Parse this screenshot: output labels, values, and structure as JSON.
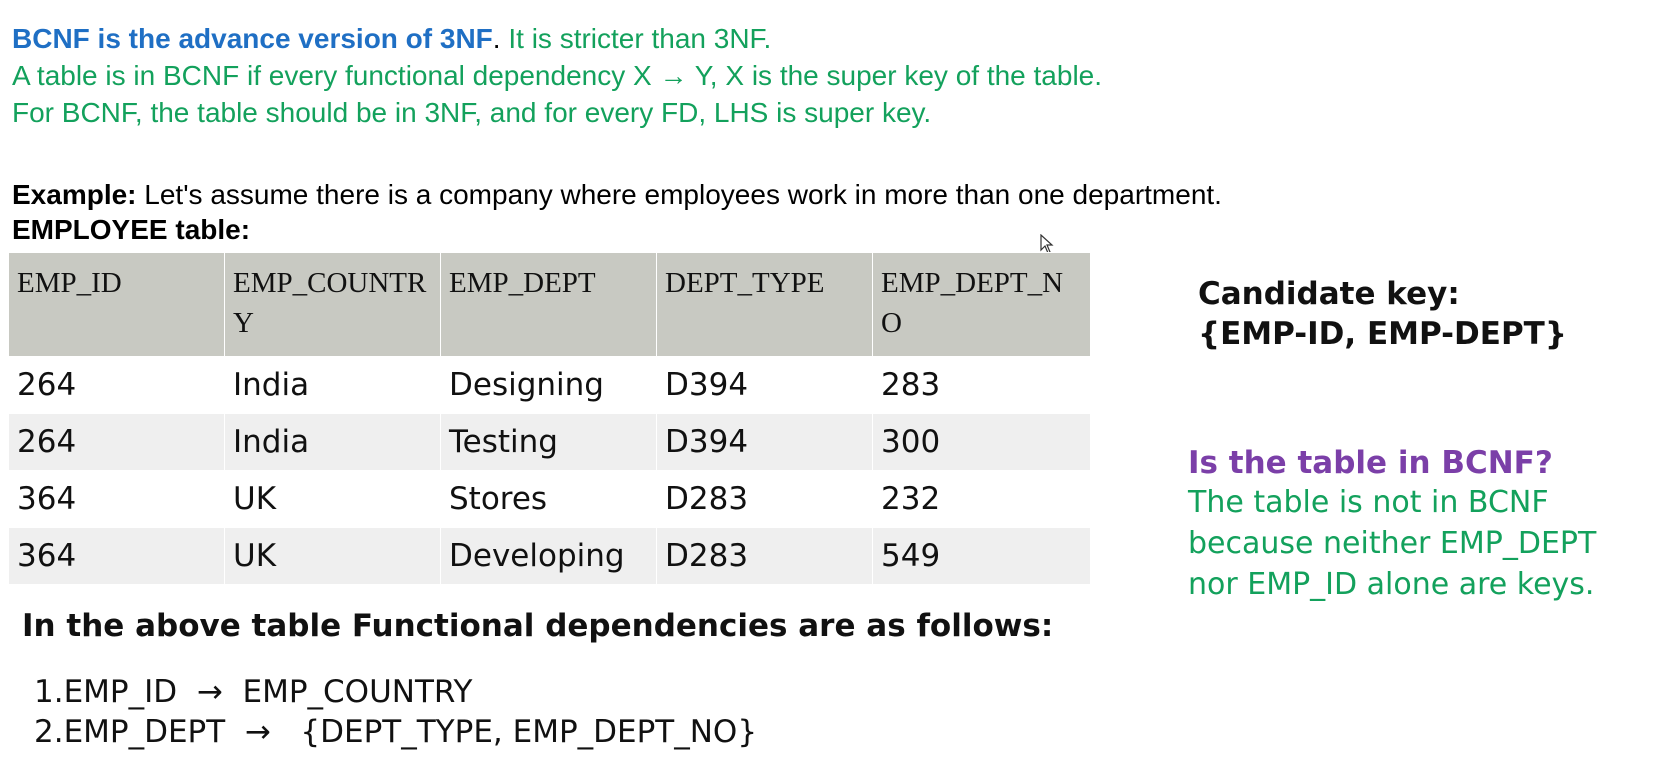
{
  "intro": {
    "line1_bold": "BCNF is the advance version of 3NF",
    "line1_sep": ".",
    "line1_rest": " It is stricter than 3NF.",
    "line2": "A table is in BCNF if every functional dependency X → Y, X is the super key of the table.",
    "line3": "For BCNF, the table should be in 3NF, and for every FD, LHS is super key."
  },
  "example": {
    "label": "Example:",
    "text": " Let's assume there is a company where employees work in more than one department.",
    "table_title": "EMPLOYEE table:"
  },
  "table": {
    "headers": [
      "EMP_ID",
      "EMP_COUNTRY",
      "EMP_DEPT",
      "DEPT_TYPE",
      "EMP_DEPT_NO"
    ],
    "rows": [
      [
        "264",
        "India",
        "Designing",
        "D394",
        "283"
      ],
      [
        "264",
        "India",
        "Testing",
        "D394",
        "300"
      ],
      [
        "364",
        "UK",
        "Stores",
        "D283",
        "232"
      ],
      [
        "364",
        "UK",
        "Developing",
        "D283",
        "549"
      ]
    ]
  },
  "candidate": {
    "label": "Candidate key:",
    "value": "{EMP-ID, EMP-DEPT}"
  },
  "bcnf_check": {
    "question": "Is the table in BCNF?",
    "answer_line1": "The table is not in BCNF",
    "answer_line2": "because neither EMP_DEPT",
    "answer_line3": "nor EMP_ID alone are keys."
  },
  "dependencies": {
    "heading": "In the above table Functional dependencies are as follows:",
    "items": [
      "1.EMP_ID  →  EMP_COUNTRY",
      "2.EMP_DEPT  →   {DEPT_TYPE, EMP_DEPT_NO}"
    ]
  }
}
